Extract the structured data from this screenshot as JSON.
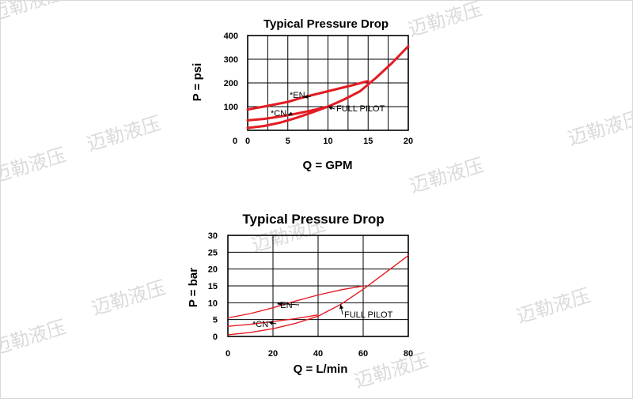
{
  "watermark_text": "迈勒液压",
  "chart_data": [
    {
      "type": "line",
      "title": "Typical Pressure Drop",
      "xlabel": "Q = GPM",
      "ylabel": "P = psi",
      "xlim": [
        0,
        20
      ],
      "ylim": [
        0,
        400
      ],
      "xticks": [
        "0",
        "5",
        "10",
        "15",
        "20"
      ],
      "yticks": [
        "100",
        "200",
        "300",
        "400"
      ],
      "y_origin_label": "0",
      "grid": true,
      "color": "#e31b23",
      "series": [
        {
          "name": "*EN",
          "x": [
            0,
            2,
            5,
            7,
            10,
            13,
            15
          ],
          "y": [
            88,
            100,
            120,
            140,
            165,
            190,
            208
          ]
        },
        {
          "name": "*CN",
          "x": [
            0,
            2,
            4,
            6,
            8,
            10
          ],
          "y": [
            42,
            48,
            58,
            70,
            84,
            100
          ]
        },
        {
          "name": "FULL PILOT",
          "x": [
            0,
            2,
            4,
            6,
            8,
            10,
            12,
            14,
            16,
            18,
            20
          ],
          "y": [
            10,
            18,
            32,
            52,
            75,
            100,
            130,
            165,
            222,
            285,
            355
          ]
        }
      ],
      "annotations": [
        {
          "text": "*EN",
          "target": "*EN",
          "x": 7,
          "y": 140
        },
        {
          "text": "*CN",
          "target": "*CN",
          "x": 5,
          "y": 64
        },
        {
          "text": "FULL PILOT",
          "target": "FULL PILOT",
          "x": 10,
          "y": 100
        }
      ]
    },
    {
      "type": "line",
      "title": "Typical Pressure Drop",
      "xlabel": "Q = L/min",
      "ylabel": "P = bar",
      "xlim": [
        0,
        80
      ],
      "ylim": [
        0,
        30
      ],
      "xticks": [
        "0",
        "20",
        "40",
        "60",
        "80"
      ],
      "yticks": [
        "0",
        "5",
        "10",
        "15",
        "20",
        "25",
        "30"
      ],
      "grid": true,
      "color": "#e31b23",
      "series": [
        {
          "name": "*EN",
          "x": [
            0,
            10,
            20,
            30,
            40,
            50,
            60
          ],
          "y": [
            5.5,
            6.8,
            8.5,
            10.5,
            12.3,
            13.8,
            15
          ]
        },
        {
          "name": "*CN",
          "x": [
            0,
            10,
            20,
            30,
            40
          ],
          "y": [
            3,
            3.6,
            4.4,
            5.3,
            6.4
          ]
        },
        {
          "name": "FULL PILOT",
          "x": [
            0,
            10,
            20,
            30,
            40,
            50,
            60,
            70,
            80
          ],
          "y": [
            0.5,
            1.2,
            2.3,
            3.9,
            6,
            9.5,
            14,
            19,
            24
          ]
        }
      ],
      "annotations": [
        {
          "text": "*EN",
          "target": "*EN",
          "x": 22,
          "y": 9.8
        },
        {
          "text": "*CN",
          "target": "*CN",
          "x": 18,
          "y": 4.3
        },
        {
          "text": "FULL PILOT",
          "target": "FULL PILOT",
          "x": 50,
          "y": 9.5
        }
      ]
    }
  ]
}
